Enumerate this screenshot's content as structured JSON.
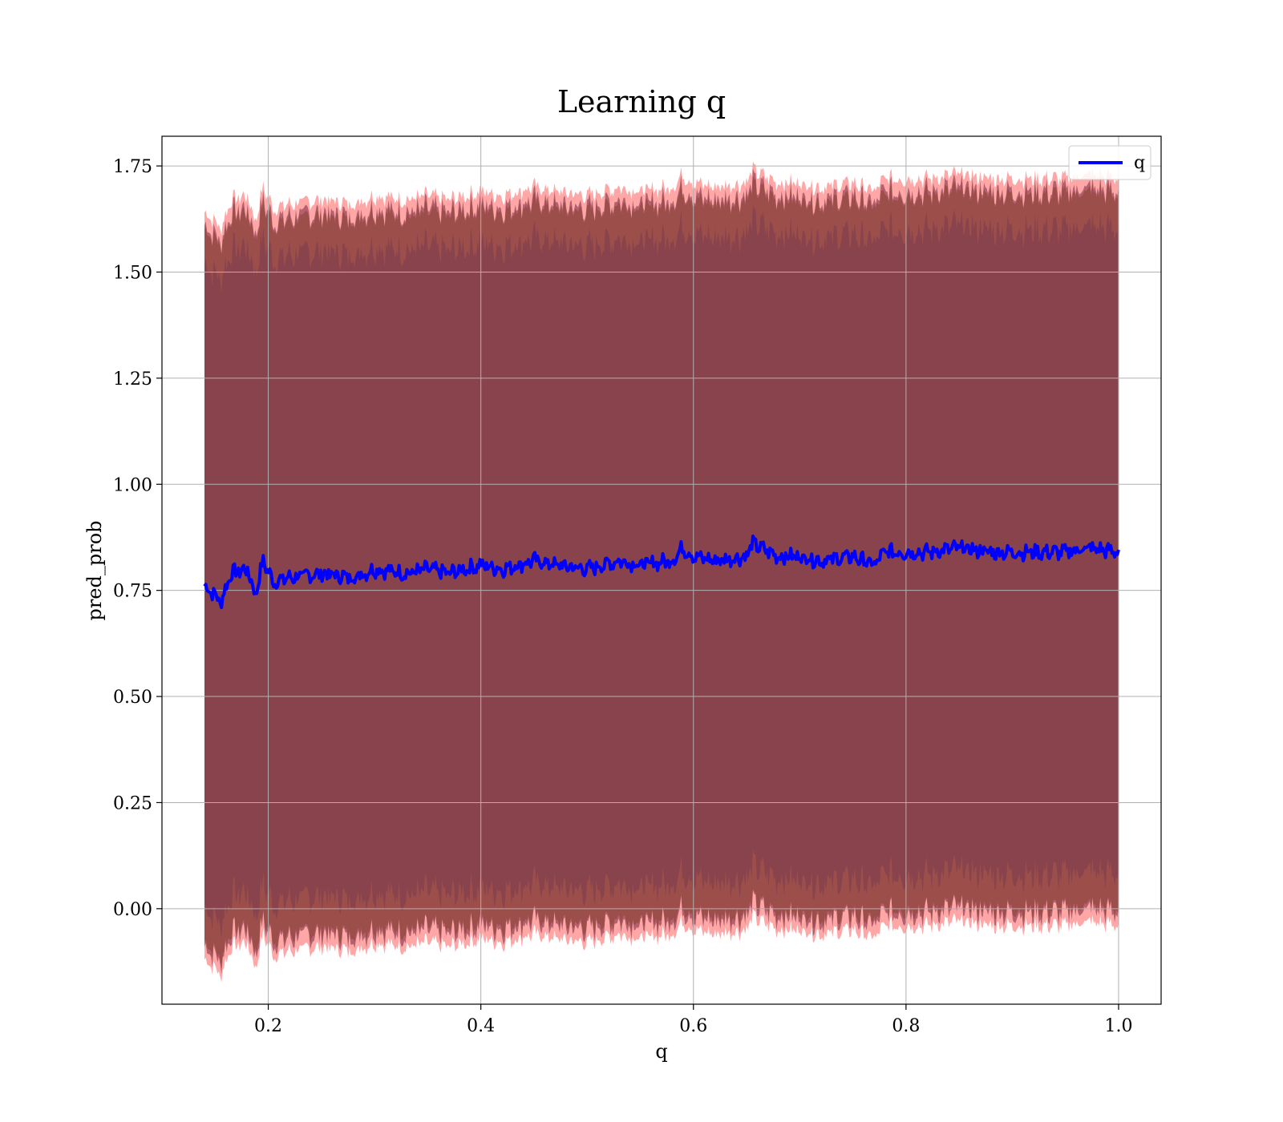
{
  "chart_data": {
    "type": "area",
    "title": "Learning q",
    "xlabel": "q",
    "ylabel": "pred_prob",
    "xlim": [
      0.1,
      1.04
    ],
    "ylim": [
      -0.225,
      1.82
    ],
    "x_ticks": [
      0.2,
      0.4,
      0.6,
      0.8,
      1.0
    ],
    "x_tick_labels": [
      "0.2",
      "0.4",
      "0.6",
      "0.8",
      "1.0"
    ],
    "y_ticks": [
      0.0,
      0.25,
      0.5,
      0.75,
      1.0,
      1.25,
      1.5,
      1.75
    ],
    "y_tick_labels": [
      "0.00",
      "0.25",
      "0.50",
      "0.75",
      "1.00",
      "1.25",
      "1.50",
      "1.75"
    ],
    "grid": true,
    "legend": {
      "position": "top-right",
      "entries": [
        "q"
      ]
    },
    "series": [
      {
        "name": "q",
        "kind": "line",
        "color": "#0000ff",
        "x": [
          0.14,
          0.15,
          0.155,
          0.165,
          0.18,
          0.188,
          0.195,
          0.205,
          0.22,
          0.25,
          0.28,
          0.3,
          0.33,
          0.35,
          0.37,
          0.4,
          0.42,
          0.45,
          0.47,
          0.5,
          0.53,
          0.55,
          0.58,
          0.59,
          0.6,
          0.62,
          0.65,
          0.655,
          0.68,
          0.7,
          0.72,
          0.75,
          0.77,
          0.78,
          0.8,
          0.82,
          0.85,
          0.88,
          0.9,
          0.92,
          0.95,
          0.97,
          1.0
        ],
        "y": [
          0.76,
          0.74,
          0.72,
          0.79,
          0.8,
          0.74,
          0.82,
          0.77,
          0.78,
          0.79,
          0.78,
          0.8,
          0.79,
          0.8,
          0.79,
          0.81,
          0.8,
          0.82,
          0.81,
          0.8,
          0.82,
          0.81,
          0.82,
          0.85,
          0.83,
          0.82,
          0.83,
          0.86,
          0.83,
          0.83,
          0.82,
          0.83,
          0.81,
          0.84,
          0.84,
          0.84,
          0.85,
          0.84,
          0.84,
          0.84,
          0.84,
          0.85,
          0.84
        ]
      }
    ],
    "bands": [
      {
        "label": "",
        "color": "#ff0000",
        "opacity": 0.35,
        "offset": 0.8,
        "width": 0.08
      },
      {
        "label": "",
        "color": "#aa6a30",
        "opacity": 0.6,
        "offset": 0.8,
        "width": 0.04
      },
      {
        "label": "",
        "color": "#6b1a35",
        "opacity": 0.5,
        "offset": 0.8,
        "width": 0.05
      },
      {
        "label": "",
        "color": "#7a3a50",
        "opacity": 0.55,
        "offset": 0.76,
        "width": 0.0
      }
    ]
  }
}
